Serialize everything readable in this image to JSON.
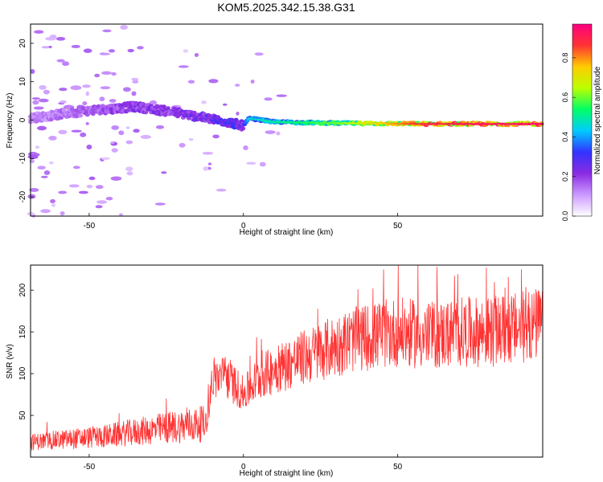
{
  "title": "KOM5.2025.342.15.38.G31",
  "chart_data": [
    {
      "type": "heatmap",
      "xlabel": "Height of straight line (km)",
      "ylabel": "Frequency (Hz)",
      "xlim": [
        -69,
        97
      ],
      "ylim": [
        -25,
        25
      ],
      "xticks": [
        -50,
        0,
        50
      ],
      "yticks": [
        -20,
        -10,
        0,
        10,
        20
      ],
      "colorbar": {
        "label": "Normalized spectral amplitude",
        "ticks": [
          0.0,
          0.2,
          0.4,
          0.6,
          0.8
        ],
        "range": [
          0,
          0.97
        ],
        "colors": [
          "#ffffff",
          "#cc99ff",
          "#8a2be2",
          "#3333ff",
          "#00ccff",
          "#00ff66",
          "#bbff00",
          "#ffcc00",
          "#ff3333",
          "#ff0080"
        ]
      },
      "ridge": {
        "x": [
          -69,
          -50,
          -35,
          -22,
          -12,
          -5,
          0,
          2,
          10,
          30,
          60,
          97
        ],
        "freq_hz": [
          0.5,
          2.5,
          3.5,
          2.0,
          0.5,
          -0.5,
          -1.5,
          0.5,
          -0.5,
          -0.8,
          -1.0,
          -1.0
        ],
        "amplitude": [
          0.15,
          0.2,
          0.25,
          0.25,
          0.3,
          0.35,
          0.3,
          0.45,
          0.5,
          0.6,
          0.9,
          0.95
        ]
      }
    },
    {
      "type": "line",
      "xlabel": "Height of straight line (km)",
      "ylabel": "SNR (v/v)",
      "xlim": [
        -69,
        97
      ],
      "ylim": [
        0,
        230
      ],
      "xticks": [
        -50,
        0,
        50
      ],
      "yticks": [
        50,
        100,
        150,
        200
      ],
      "color": "#ff3333",
      "trend": {
        "x": [
          -69,
          -55,
          -45,
          -35,
          -25,
          -12,
          -10,
          -5,
          0,
          5,
          10,
          20,
          35,
          50,
          60,
          70,
          80,
          90,
          97
        ],
        "y": [
          18,
          22,
          25,
          30,
          35,
          40,
          95,
          95,
          75,
          95,
          105,
          120,
          140,
          150,
          145,
          150,
          150,
          155,
          160
        ]
      },
      "max_value": 230
    }
  ]
}
